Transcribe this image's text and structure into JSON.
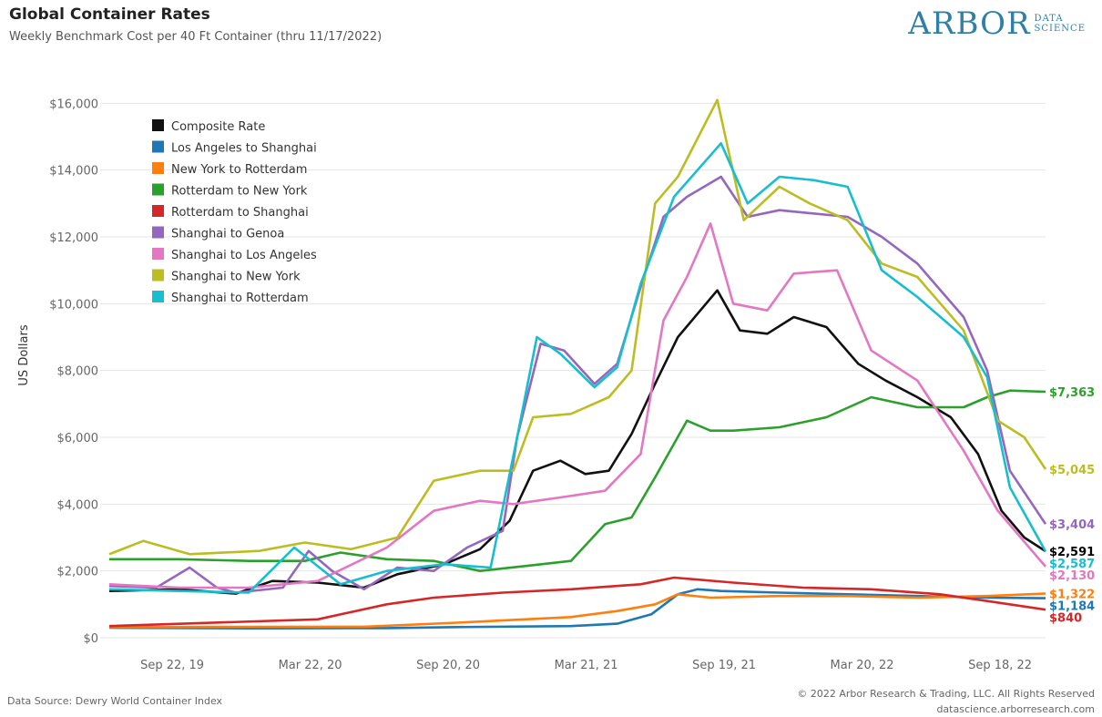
{
  "header": {
    "title": "Global Container Rates",
    "subtitle": "Weekly Benchmark Cost per 40 Ft Container (thru 11/17/2022)"
  },
  "logo": {
    "main": "ARBOR",
    "sub1": "DATA",
    "sub2": "SCIENCE",
    "color": "#2f7fa6"
  },
  "footer": {
    "source": "Data Source: Dewry World Container Index",
    "copyright": "© 2022 Arbor Research & Trading, LLC. All Rights Reserved",
    "url": "datascience.arborresearch.com"
  },
  "chart_data": {
    "type": "line",
    "ylabel": "US Dollars",
    "xlabel": "",
    "ylim": [
      0,
      16500
    ],
    "y_ticks": [
      0,
      2000,
      4000,
      6000,
      8000,
      10000,
      12000,
      14000,
      16000
    ],
    "y_tick_labels": [
      "$0",
      "$2,000",
      "$4,000",
      "$6,000",
      "$8,000",
      "$10,000",
      "$12,000",
      "$14,000",
      "$16,000"
    ],
    "x_range": [
      "2019-07-01",
      "2022-11-17"
    ],
    "x_ticks": [
      "2019-09-22",
      "2020-03-22",
      "2020-09-20",
      "2021-03-21",
      "2021-09-19",
      "2022-03-20",
      "2022-09-18"
    ],
    "x_tick_labels": [
      "Sep 22, 19",
      "Mar 22, 20",
      "Sep 20, 20",
      "Mar 21, 21",
      "Sep 19, 21",
      "Mar 20, 22",
      "Sep 18, 22"
    ],
    "grid": "horizontal",
    "legend": "top-left",
    "series": [
      {
        "name": "Composite Rate",
        "color": "#111111",
        "end_label": "$2,591",
        "points": [
          [
            "2019-07-01",
            1400
          ],
          [
            "2019-10-01",
            1450
          ],
          [
            "2019-12-15",
            1320
          ],
          [
            "2020-02-01",
            1700
          ],
          [
            "2020-04-01",
            1650
          ],
          [
            "2020-06-01",
            1500
          ],
          [
            "2020-07-15",
            1900
          ],
          [
            "2020-09-15",
            2200
          ],
          [
            "2020-11-01",
            2650
          ],
          [
            "2020-12-10",
            3500
          ],
          [
            "2021-01-10",
            5000
          ],
          [
            "2021-02-15",
            5300
          ],
          [
            "2021-03-20",
            4900
          ],
          [
            "2021-04-20",
            5000
          ],
          [
            "2021-05-20",
            6100
          ],
          [
            "2021-06-20",
            7600
          ],
          [
            "2021-07-20",
            9000
          ],
          [
            "2021-09-10",
            10400
          ],
          [
            "2021-10-10",
            9200
          ],
          [
            "2021-11-15",
            9100
          ],
          [
            "2021-12-20",
            9600
          ],
          [
            "2022-02-01",
            9300
          ],
          [
            "2022-03-15",
            8200
          ],
          [
            "2022-04-20",
            7700
          ],
          [
            "2022-06-01",
            7200
          ],
          [
            "2022-07-15",
            6600
          ],
          [
            "2022-08-20",
            5500
          ],
          [
            "2022-09-20",
            3800
          ],
          [
            "2022-10-20",
            3000
          ],
          [
            "2022-11-17",
            2591
          ]
        ]
      },
      {
        "name": "Los Angeles to Shanghai",
        "color": "#1f77b4",
        "end_label": "$1,184",
        "points": [
          [
            "2019-07-01",
            300
          ],
          [
            "2020-01-01",
            280
          ],
          [
            "2020-07-01",
            290
          ],
          [
            "2020-10-01",
            320
          ],
          [
            "2021-03-01",
            350
          ],
          [
            "2021-05-01",
            420
          ],
          [
            "2021-06-15",
            700
          ],
          [
            "2021-07-20",
            1300
          ],
          [
            "2021-08-15",
            1450
          ],
          [
            "2021-09-15",
            1400
          ],
          [
            "2021-12-01",
            1350
          ],
          [
            "2022-03-01",
            1300
          ],
          [
            "2022-06-01",
            1250
          ],
          [
            "2022-09-01",
            1200
          ],
          [
            "2022-11-17",
            1184
          ]
        ]
      },
      {
        "name": "New York to Rotterdam",
        "color": "#ff7f0e",
        "end_label": "$1,322",
        "points": [
          [
            "2019-07-01",
            320
          ],
          [
            "2020-06-01",
            330
          ],
          [
            "2020-10-01",
            450
          ],
          [
            "2021-03-01",
            620
          ],
          [
            "2021-05-01",
            800
          ],
          [
            "2021-06-20",
            1000
          ],
          [
            "2021-07-20",
            1300
          ],
          [
            "2021-09-01",
            1200
          ],
          [
            "2021-12-01",
            1250
          ],
          [
            "2022-03-01",
            1250
          ],
          [
            "2022-06-01",
            1200
          ],
          [
            "2022-09-01",
            1250
          ],
          [
            "2022-11-17",
            1322
          ]
        ]
      },
      {
        "name": "Rotterdam to New York",
        "color": "#2ca02c",
        "end_label": "$7,363",
        "points": [
          [
            "2019-07-01",
            2350
          ],
          [
            "2019-10-01",
            2350
          ],
          [
            "2020-01-01",
            2300
          ],
          [
            "2020-03-15",
            2300
          ],
          [
            "2020-05-01",
            2550
          ],
          [
            "2020-07-01",
            2350
          ],
          [
            "2020-09-01",
            2300
          ],
          [
            "2020-11-01",
            2000
          ],
          [
            "2021-01-01",
            2150
          ],
          [
            "2021-03-01",
            2300
          ],
          [
            "2021-04-15",
            3400
          ],
          [
            "2021-05-20",
            3600
          ],
          [
            "2021-06-20",
            4800
          ],
          [
            "2021-08-01",
            6500
          ],
          [
            "2021-09-01",
            6200
          ],
          [
            "2021-10-01",
            6200
          ],
          [
            "2021-12-01",
            6300
          ],
          [
            "2022-02-01",
            6600
          ],
          [
            "2022-04-01",
            7200
          ],
          [
            "2022-06-01",
            6900
          ],
          [
            "2022-08-01",
            6900
          ],
          [
            "2022-09-01",
            7200
          ],
          [
            "2022-10-01",
            7400
          ],
          [
            "2022-11-17",
            7363
          ]
        ]
      },
      {
        "name": "Rotterdam to Shanghai",
        "color": "#d62728",
        "end_label": "$840",
        "points": [
          [
            "2019-07-01",
            350
          ],
          [
            "2020-04-01",
            550
          ],
          [
            "2020-07-01",
            1000
          ],
          [
            "2020-09-01",
            1200
          ],
          [
            "2020-12-01",
            1350
          ],
          [
            "2021-03-01",
            1450
          ],
          [
            "2021-06-01",
            1600
          ],
          [
            "2021-07-15",
            1800
          ],
          [
            "2021-10-01",
            1650
          ],
          [
            "2022-01-01",
            1500
          ],
          [
            "2022-04-01",
            1450
          ],
          [
            "2022-07-01",
            1300
          ],
          [
            "2022-09-01",
            1100
          ],
          [
            "2022-11-17",
            840
          ]
        ]
      },
      {
        "name": "Shanghai to Genoa",
        "color": "#9467bd",
        "end_label": "$3,404",
        "points": [
          [
            "2019-07-01",
            1550
          ],
          [
            "2019-09-01",
            1500
          ],
          [
            "2019-10-15",
            2100
          ],
          [
            "2019-11-20",
            1500
          ],
          [
            "2019-12-15",
            1350
          ],
          [
            "2020-02-15",
            1500
          ],
          [
            "2020-03-20",
            2600
          ],
          [
            "2020-04-20",
            2000
          ],
          [
            "2020-06-01",
            1450
          ],
          [
            "2020-07-15",
            2100
          ],
          [
            "2020-09-01",
            2000
          ],
          [
            "2020-10-15",
            2700
          ],
          [
            "2020-12-01",
            3200
          ],
          [
            "2020-12-20",
            6000
          ],
          [
            "2021-01-20",
            8800
          ],
          [
            "2021-02-20",
            8600
          ],
          [
            "2021-04-01",
            7600
          ],
          [
            "2021-05-01",
            8200
          ],
          [
            "2021-06-01",
            10500
          ],
          [
            "2021-07-01",
            12600
          ],
          [
            "2021-08-01",
            13200
          ],
          [
            "2021-09-15",
            13800
          ],
          [
            "2021-10-20",
            12600
          ],
          [
            "2021-12-01",
            12800
          ],
          [
            "2022-03-01",
            12600
          ],
          [
            "2022-04-15",
            12000
          ],
          [
            "2022-06-01",
            11200
          ],
          [
            "2022-08-01",
            9600
          ],
          [
            "2022-09-01",
            8000
          ],
          [
            "2022-10-01",
            5000
          ],
          [
            "2022-11-17",
            3404
          ]
        ]
      },
      {
        "name": "Shanghai to Los Angeles",
        "color": "#e377c2",
        "end_label": "$2,130",
        "points": [
          [
            "2019-07-01",
            1600
          ],
          [
            "2019-10-01",
            1500
          ],
          [
            "2020-01-01",
            1500
          ],
          [
            "2020-04-01",
            1700
          ],
          [
            "2020-07-01",
            2700
          ],
          [
            "2020-09-01",
            3800
          ],
          [
            "2020-11-01",
            4100
          ],
          [
            "2020-12-15",
            4000
          ],
          [
            "2021-02-15",
            4200
          ],
          [
            "2021-04-15",
            4400
          ],
          [
            "2021-06-01",
            5500
          ],
          [
            "2021-07-01",
            9500
          ],
          [
            "2021-08-01",
            10800
          ],
          [
            "2021-09-01",
            12400
          ],
          [
            "2021-10-01",
            10000
          ],
          [
            "2021-11-15",
            9800
          ],
          [
            "2021-12-20",
            10900
          ],
          [
            "2022-02-15",
            11000
          ],
          [
            "2022-04-01",
            8600
          ],
          [
            "2022-06-01",
            7700
          ],
          [
            "2022-08-01",
            5600
          ],
          [
            "2022-09-15",
            3800
          ],
          [
            "2022-11-17",
            2130
          ]
        ]
      },
      {
        "name": "Shanghai to New York",
        "color": "#bcbd22",
        "end_label": "$5,045",
        "points": [
          [
            "2019-07-01",
            2500
          ],
          [
            "2019-08-15",
            2900
          ],
          [
            "2019-10-15",
            2500
          ],
          [
            "2020-01-15",
            2600
          ],
          [
            "2020-03-15",
            2850
          ],
          [
            "2020-05-15",
            2650
          ],
          [
            "2020-07-15",
            3000
          ],
          [
            "2020-09-01",
            4700
          ],
          [
            "2020-11-01",
            5000
          ],
          [
            "2020-12-15",
            5000
          ],
          [
            "2021-01-10",
            6600
          ],
          [
            "2021-03-01",
            6700
          ],
          [
            "2021-04-20",
            7200
          ],
          [
            "2021-05-20",
            8000
          ],
          [
            "2021-06-20",
            13000
          ],
          [
            "2021-07-20",
            13800
          ],
          [
            "2021-09-10",
            16100
          ],
          [
            "2021-10-15",
            12500
          ],
          [
            "2021-12-01",
            13500
          ],
          [
            "2022-01-10",
            13000
          ],
          [
            "2022-03-01",
            12500
          ],
          [
            "2022-04-15",
            11200
          ],
          [
            "2022-06-01",
            10800
          ],
          [
            "2022-08-01",
            9200
          ],
          [
            "2022-09-15",
            6500
          ],
          [
            "2022-10-20",
            6000
          ],
          [
            "2022-11-17",
            5045
          ]
        ]
      },
      {
        "name": "Shanghai to Rotterdam",
        "color": "#17becf",
        "end_label": "$2,587",
        "points": [
          [
            "2019-07-01",
            1450
          ],
          [
            "2019-10-01",
            1400
          ],
          [
            "2020-01-01",
            1350
          ],
          [
            "2020-03-01",
            2700
          ],
          [
            "2020-05-01",
            1600
          ],
          [
            "2020-07-01",
            2000
          ],
          [
            "2020-09-15",
            2200
          ],
          [
            "2020-11-15",
            2100
          ],
          [
            "2020-12-20",
            6000
          ],
          [
            "2021-01-15",
            9000
          ],
          [
            "2021-02-15",
            8500
          ],
          [
            "2021-04-01",
            7500
          ],
          [
            "2021-05-01",
            8100
          ],
          [
            "2021-06-01",
            10600
          ],
          [
            "2021-07-15",
            13200
          ],
          [
            "2021-09-15",
            14800
          ],
          [
            "2021-10-20",
            13000
          ],
          [
            "2021-12-01",
            13800
          ],
          [
            "2022-01-15",
            13700
          ],
          [
            "2022-03-01",
            13500
          ],
          [
            "2022-04-15",
            11000
          ],
          [
            "2022-06-01",
            10200
          ],
          [
            "2022-08-01",
            9000
          ],
          [
            "2022-09-01",
            7800
          ],
          [
            "2022-10-01",
            4500
          ],
          [
            "2022-11-17",
            2587
          ]
        ]
      }
    ]
  }
}
